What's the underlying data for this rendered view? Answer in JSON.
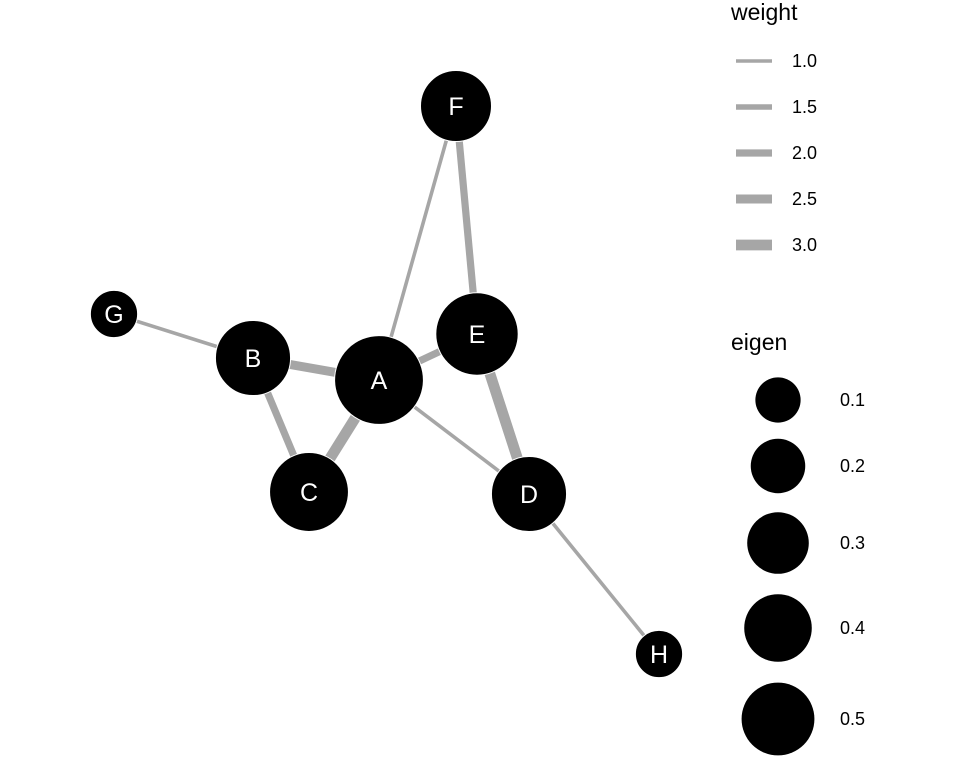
{
  "colors": {
    "edge": "#a6a6a6",
    "node": "#000000",
    "node_label": "#ffffff",
    "background": "#ffffff"
  },
  "nodes": [
    {
      "id": "A",
      "label": "A",
      "eigen": 0.5
    },
    {
      "id": "B",
      "label": "B",
      "eigen": 0.3
    },
    {
      "id": "C",
      "label": "C",
      "eigen": 0.35
    },
    {
      "id": "D",
      "label": "D",
      "eigen": 0.3
    },
    {
      "id": "E",
      "label": "E",
      "eigen": 0.4
    },
    {
      "id": "F",
      "label": "F",
      "eigen": 0.25
    },
    {
      "id": "G",
      "label": "G",
      "eigen": 0.05
    },
    {
      "id": "H",
      "label": "H",
      "eigen": 0.05
    }
  ],
  "edges": [
    {
      "from": "A",
      "to": "B",
      "weight": 2.5
    },
    {
      "from": "A",
      "to": "C",
      "weight": 3.0
    },
    {
      "from": "A",
      "to": "D",
      "weight": 1.0
    },
    {
      "from": "A",
      "to": "E",
      "weight": 2.0
    },
    {
      "from": "A",
      "to": "F",
      "weight": 1.0
    },
    {
      "from": "B",
      "to": "C",
      "weight": 2.0
    },
    {
      "from": "B",
      "to": "G",
      "weight": 1.0
    },
    {
      "from": "E",
      "to": "F",
      "weight": 2.0
    },
    {
      "from": "E",
      "to": "D",
      "weight": 3.0
    },
    {
      "from": "D",
      "to": "H",
      "weight": 1.0
    }
  ],
  "legend": {
    "weight": {
      "title": "weight",
      "items": [
        {
          "label": "1.0",
          "value": 1.0
        },
        {
          "label": "1.5",
          "value": 1.5
        },
        {
          "label": "2.0",
          "value": 2.0
        },
        {
          "label": "2.5",
          "value": 2.5
        },
        {
          "label": "3.0",
          "value": 3.0
        }
      ]
    },
    "eigen": {
      "title": "eigen",
      "items": [
        {
          "label": "0.1",
          "value": 0.1
        },
        {
          "label": "0.2",
          "value": 0.2
        },
        {
          "label": "0.3",
          "value": 0.3
        },
        {
          "label": "0.4",
          "value": 0.4
        },
        {
          "label": "0.5",
          "value": 0.5
        }
      ]
    }
  }
}
